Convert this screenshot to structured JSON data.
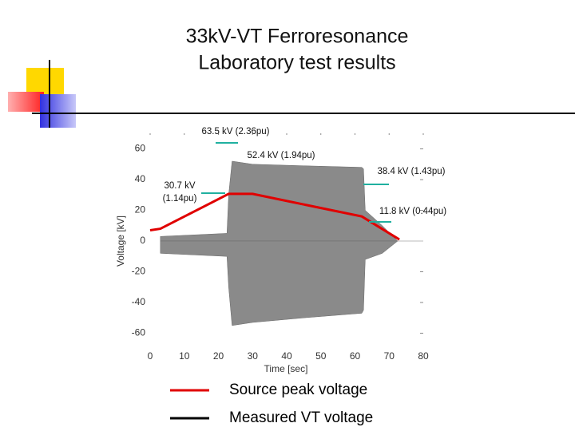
{
  "chart_data": {
    "type": "line",
    "title": [
      "33kV-VT Ferroresonance",
      "Laboratory test results"
    ],
    "x_label": "Time [sec]",
    "y_label": "Voltage [kV]",
    "xlim": [
      0,
      80
    ],
    "ylim": [
      -66,
      66
    ],
    "xticks": [
      0,
      10,
      20,
      30,
      40,
      50,
      60,
      70,
      80
    ],
    "yticks": [
      -60,
      -40,
      -20,
      0,
      20,
      40,
      60
    ],
    "series": [
      {
        "name": "Source peak voltage",
        "color": "#e00000",
        "x": [
          0,
          3,
          23,
          30,
          62,
          73
        ],
        "values": [
          7,
          8,
          30.7,
          30.7,
          16,
          1
        ]
      },
      {
        "name": "Measured VT voltage",
        "color": "#000000",
        "fill": "#8a8a8a",
        "x": [
          3,
          22.5,
          23,
          24,
          30,
          45,
          62,
          62.5,
          63,
          68,
          72.5
        ],
        "values": [
          3,
          5,
          30,
          52,
          50,
          49,
          48,
          47,
          20,
          10,
          0
        ],
        "lower": [
          -8,
          -10,
          -30,
          -55,
          -53,
          -50,
          -47,
          -45,
          -12,
          -8,
          0
        ]
      }
    ],
    "annotations": [
      "63.5 kV (2.36pu)",
      "52.4 kV (1.94pu)",
      "30.7 kV",
      "(1.14pu)",
      "38.4 kV (1.43pu)",
      "11.8 kV (0.44pu)"
    ]
  }
}
